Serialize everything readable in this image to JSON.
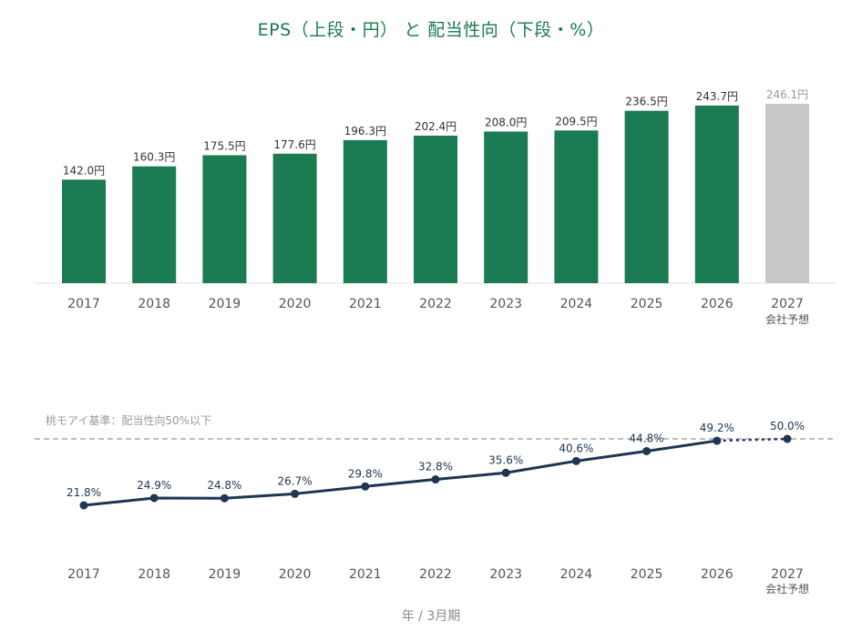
{
  "title": "EPS（上段・円） と 配当性向（下段・%）",
  "footer": "年 / 3月期",
  "colors": {
    "bar": "#1b7b52",
    "forecast_bar": "#c8c8c8",
    "line": "#1f3553",
    "ref_line": "#999999",
    "title": "#1a7a4e"
  },
  "chart_data": [
    {
      "type": "bar",
      "title": "EPS（上段・円）",
      "categories": [
        "2017",
        "2018",
        "2019",
        "2020",
        "2021",
        "2022",
        "2023",
        "2024",
        "2025",
        "2026",
        "2027"
      ],
      "category_sublabels": [
        "",
        "",
        "",
        "",
        "",
        "",
        "",
        "",
        "",
        "",
        "会社予想"
      ],
      "values": [
        142.0,
        160.3,
        175.5,
        177.6,
        196.3,
        202.4,
        208.0,
        209.5,
        236.5,
        243.7,
        246.1
      ],
      "data_labels": [
        "142.0円",
        "160.3円",
        "175.5円",
        "177.6円",
        "196.3円",
        "202.4円",
        "208.0円",
        "209.5円",
        "236.5円",
        "243.7円",
        "246.1円"
      ],
      "forecast_index": 10,
      "unit": "円",
      "ylim": [
        0,
        246.1
      ],
      "grid": false
    },
    {
      "type": "line",
      "title": "配当性向（下段・%）",
      "categories": [
        "2017",
        "2018",
        "2019",
        "2020",
        "2021",
        "2022",
        "2023",
        "2024",
        "2025",
        "2026",
        "2027"
      ],
      "category_sublabels": [
        "",
        "",
        "",
        "",
        "",
        "",
        "",
        "",
        "",
        "",
        "会社予想"
      ],
      "values": [
        21.8,
        24.9,
        24.8,
        26.7,
        29.8,
        32.8,
        35.6,
        40.6,
        44.8,
        49.2,
        50.0
      ],
      "data_labels": [
        "21.8%",
        "24.9%",
        "24.8%",
        "26.7%",
        "29.8%",
        "32.8%",
        "35.6%",
        "40.6%",
        "44.8%",
        "49.2%",
        "50.0%"
      ],
      "forecast_index": 10,
      "unit": "%",
      "ylim": [
        18.5,
        50.0
      ],
      "reference_line": {
        "value": 50,
        "label": "桃モアイ基準：配当性向50%以下"
      },
      "grid": false
    }
  ]
}
